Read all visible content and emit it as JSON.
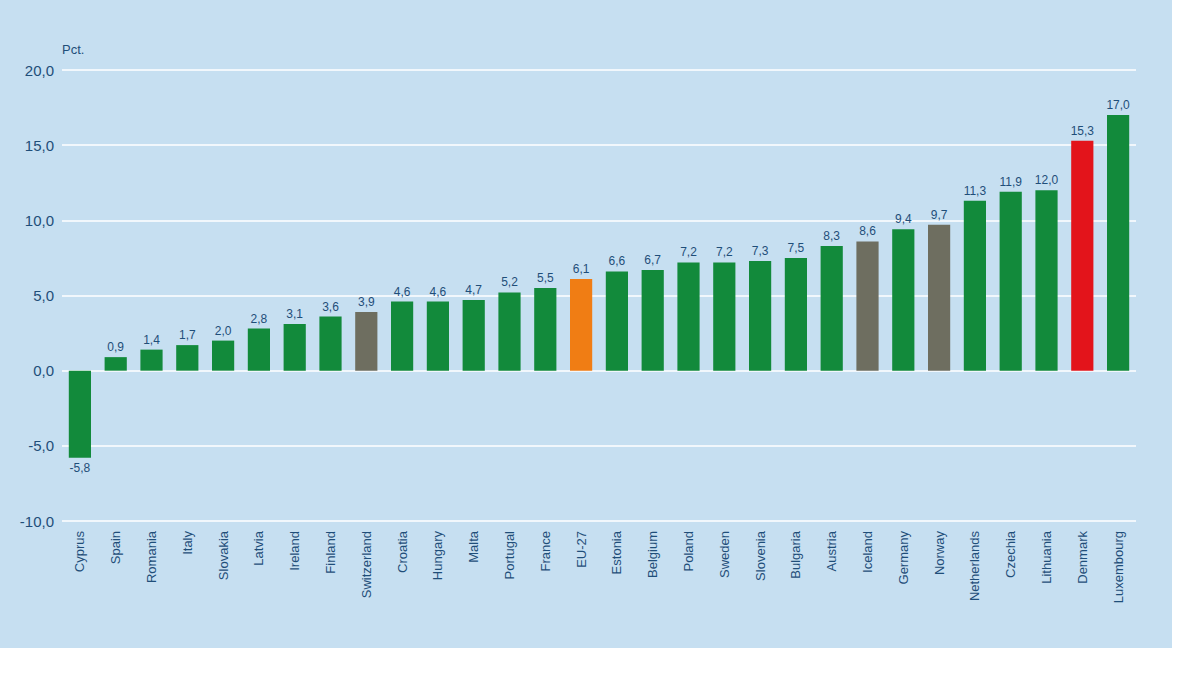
{
  "chart_data": {
    "type": "bar",
    "ylabel": "Pct.",
    "categories": [
      "Cyprus",
      "Spain",
      "Romania",
      "Italy",
      "Slovakia",
      "Latvia",
      "Ireland",
      "Finland",
      "Switzerland",
      "Croatia",
      "Hungary",
      "Malta",
      "Portugal",
      "France",
      "EU-27",
      "Estonia",
      "Belgium",
      "Poland",
      "Sweden",
      "Slovenia",
      "Bulgaria",
      "Austria",
      "Iceland",
      "Germany",
      "Norway",
      "Netherlands",
      "Czechia",
      "Lithuania",
      "Denmark",
      "Luxembourg"
    ],
    "values": [
      -5.8,
      0.9,
      1.4,
      1.7,
      2.0,
      2.8,
      3.1,
      3.6,
      3.9,
      4.6,
      4.6,
      4.7,
      5.2,
      5.5,
      6.1,
      6.6,
      6.7,
      7.2,
      7.2,
      7.3,
      7.5,
      8.3,
      8.6,
      9.4,
      9.7,
      11.3,
      11.9,
      12.0,
      15.3,
      17.0
    ],
    "value_labels": [
      "-5,8",
      "0,9",
      "1,4",
      "1,7",
      "2,0",
      "2,8",
      "3,1",
      "3,6",
      "3,9",
      "4,6",
      "4,6",
      "4,7",
      "5,2",
      "5,5",
      "6,1",
      "6,6",
      "6,7",
      "7,2",
      "7,2",
      "7,3",
      "7,5",
      "8,3",
      "8,6",
      "9,4",
      "9,7",
      "11,3",
      "11,9",
      "12,0",
      "15,3",
      "17,0"
    ],
    "colors": [
      "#128a3b",
      "#128a3b",
      "#128a3b",
      "#128a3b",
      "#128a3b",
      "#128a3b",
      "#128a3b",
      "#128a3b",
      "#6e6e60",
      "#128a3b",
      "#128a3b",
      "#128a3b",
      "#128a3b",
      "#128a3b",
      "#f07d14",
      "#128a3b",
      "#128a3b",
      "#128a3b",
      "#128a3b",
      "#128a3b",
      "#128a3b",
      "#128a3b",
      "#6e6e60",
      "#128a3b",
      "#6e6e60",
      "#128a3b",
      "#128a3b",
      "#128a3b",
      "#e3141b",
      "#128a3b"
    ],
    "ylim": [
      -10,
      20
    ],
    "yticks": [
      {
        "value": -10,
        "label": "-10,0"
      },
      {
        "value": -5,
        "label": "-5,0"
      },
      {
        "value": 0,
        "label": "0,0"
      },
      {
        "value": 5,
        "label": "5,0"
      },
      {
        "value": 10,
        "label": "10,0"
      },
      {
        "value": 15,
        "label": "15,0"
      },
      {
        "value": 20,
        "label": "20,0"
      }
    ],
    "grid": true,
    "data_labels": true
  }
}
